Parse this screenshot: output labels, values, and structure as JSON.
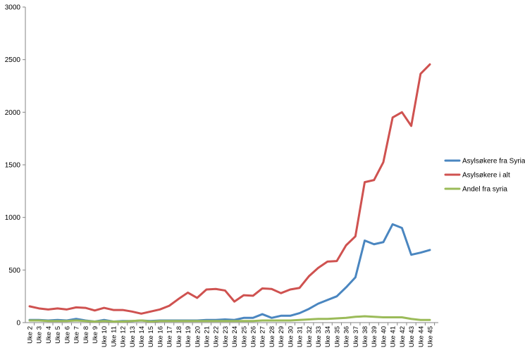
{
  "chart_data": {
    "type": "line",
    "title": "",
    "xlabel": "",
    "ylabel": "",
    "ylim": [
      0,
      3000
    ],
    "yticks": [
      0,
      500,
      1000,
      1500,
      2000,
      2500,
      3000
    ],
    "grid": false,
    "legend_position": "right",
    "categories": [
      "Uke 2",
      "Uke 3",
      "Uke 4",
      "Uke 5",
      "Uke 6",
      "Uke 7",
      "Uke 8",
      "Uke 9",
      "Uke 10",
      "Uke 11",
      "Uke 12",
      "Uke 13",
      "Uke 14",
      "Uke 15",
      "Uke 16",
      "Uke 17",
      "Uke 18",
      "Uke 19",
      "Uke 20",
      "Uke 21",
      "Uke 22",
      "Uke 23",
      "Uke 24",
      "Uke 25",
      "Uke 26",
      "Uke 27",
      "Uke 28",
      "Uke 29",
      "Uke 30",
      "Uke 31",
      "Uke 32",
      "Uke 33",
      "Uke 34",
      "Uke 35",
      "Uke 36",
      "Uke 37",
      "Uke 38",
      "Uke 39",
      "Uke 40",
      "Uke 41",
      "Uke 42",
      "Uke 43",
      "Uke 44",
      "Uke 45"
    ],
    "series": [
      {
        "name": "Asylsøkere fra Syria",
        "color": "#4a86c0",
        "values": [
          25,
          25,
          20,
          25,
          20,
          35,
          20,
          10,
          25,
          10,
          15,
          15,
          20,
          15,
          20,
          20,
          20,
          20,
          20,
          25,
          25,
          30,
          25,
          45,
          45,
          80,
          45,
          65,
          65,
          90,
          130,
          180,
          215,
          250,
          335,
          430,
          780,
          745,
          765,
          935,
          900,
          645,
          665,
          690
        ]
      },
      {
        "name": "Asylsøkere i alt",
        "color": "#cf5250",
        "values": [
          155,
          135,
          125,
          135,
          125,
          145,
          140,
          115,
          140,
          120,
          120,
          105,
          85,
          105,
          125,
          160,
          225,
          285,
          235,
          315,
          320,
          305,
          200,
          260,
          255,
          325,
          320,
          280,
          315,
          330,
          440,
          520,
          580,
          585,
          735,
          820,
          1335,
          1355,
          1525,
          1950,
          2000,
          1870,
          2365,
          2455
        ]
      },
      {
        "name": "Andel fra syria",
        "color": "#9bbb59",
        "values": [
          20,
          20,
          15,
          15,
          15,
          20,
          15,
          10,
          15,
          10,
          10,
          15,
          20,
          10,
          15,
          15,
          15,
          15,
          15,
          15,
          15,
          15,
          15,
          15,
          15,
          20,
          20,
          20,
          20,
          25,
          30,
          35,
          35,
          40,
          45,
          55,
          60,
          55,
          50,
          50,
          50,
          35,
          25,
          25
        ]
      }
    ]
  }
}
